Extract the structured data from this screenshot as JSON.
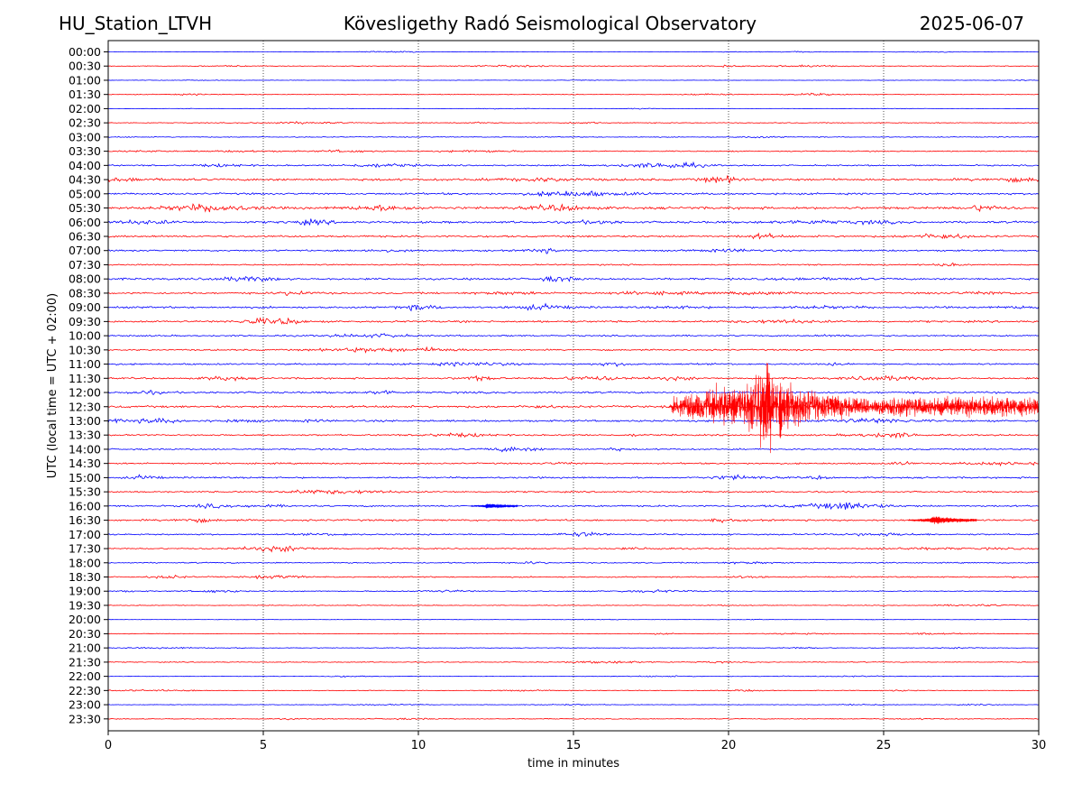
{
  "header": {
    "station": "HU_Station_LTVH",
    "title": "Kövesligethy Radó Seismological Observatory",
    "date": "2025-06-07"
  },
  "colors": {
    "even_row": "#0000ff",
    "odd_row": "#ff0000",
    "grid": "#000000",
    "axis": "#000000"
  },
  "chart_data": {
    "type": "line",
    "subtype": "helicorder",
    "xlabel": "time in minutes",
    "ylabel": "UTC (local time = UTC + 02:00)",
    "xlim": [
      0,
      30
    ],
    "xticks": [
      "0",
      "5",
      "10",
      "15",
      "20",
      "25",
      "30"
    ],
    "grid": "vertical dotted at every 5 minutes",
    "row_labels": [
      "00:00",
      "00:30",
      "01:00",
      "01:30",
      "02:00",
      "02:30",
      "03:00",
      "03:30",
      "04:00",
      "04:30",
      "05:00",
      "05:30",
      "06:00",
      "06:30",
      "07:00",
      "07:30",
      "08:00",
      "08:30",
      "09:00",
      "09:30",
      "10:00",
      "10:30",
      "11:00",
      "11:30",
      "12:00",
      "12:30",
      "13:00",
      "13:30",
      "14:00",
      "14:30",
      "15:00",
      "15:30",
      "16:00",
      "16:30",
      "17:00",
      "17:30",
      "18:00",
      "18:30",
      "19:00",
      "19:30",
      "20:00",
      "20:30",
      "21:00",
      "21:30",
      "22:00",
      "22:30",
      "23:00",
      "23:30"
    ],
    "row_noise_level": [
      0.3,
      0.5,
      0.3,
      0.5,
      0.3,
      0.6,
      0.6,
      0.8,
      1.0,
      1.6,
      1.4,
      1.8,
      1.6,
      1.4,
      1.2,
      1.0,
      1.4,
      1.3,
      1.4,
      1.4,
      1.1,
      1.1,
      1.2,
      1.2,
      1.4,
      1.6,
      1.4,
      1.1,
      1.1,
      1.1,
      1.2,
      1.1,
      1.2,
      1.3,
      1.1,
      0.9,
      0.9,
      0.9,
      0.7,
      0.5,
      0.3,
      0.5,
      0.5,
      0.6,
      0.4,
      0.5,
      0.4,
      0.6
    ],
    "events": [
      {
        "row": "12:30",
        "start_min": 18.1,
        "peak_min": 21.0,
        "end_min": 30.0,
        "peak_amplitude_rows": 7.0
      },
      {
        "row": "16:00",
        "start_min": 11.7,
        "peak_min": 12.2,
        "end_min": 13.2,
        "peak_amplitude_rows": 0.3
      },
      {
        "row": "16:30",
        "start_min": 25.8,
        "peak_min": 26.6,
        "end_min": 28.0,
        "peak_amplitude_rows": 0.5
      }
    ]
  }
}
